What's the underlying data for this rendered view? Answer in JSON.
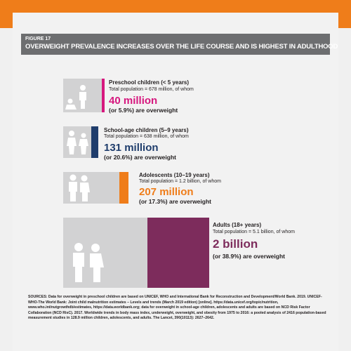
{
  "figure": {
    "label": "FIGURE 17",
    "title": "OVERWEIGHT PREVALENCE INCREASES OVER THE LIFE COURSE AND IS HIGHEST IN ADULTHOOD"
  },
  "groups": [
    {
      "heading": "Preschool children (< 5 years)",
      "population": "Total population = 678 million, of whom",
      "count": "40 million",
      "share": "(or 5.9%) are overweight"
    },
    {
      "heading": "School-age children (5–9 years)",
      "population": "Total population = 638 million, of whom",
      "count": "131 million",
      "share": "(or 20.6%) are overweight"
    },
    {
      "heading": "Adolescents (10–19 years)",
      "population": "Total population = 1.2 billion, of whom",
      "count": "207 million",
      "share": "(or 17.3%) are overweight"
    },
    {
      "heading": "Adults (18+ years)",
      "population": "Total population = 5.1 billion, of whom",
      "count": "2 billion",
      "share": "(or 38.9%) are overweight"
    }
  ],
  "sources": "SOURCES: Data for overweight in preschool children are based on UNICEF, WHO and International Bank for Reconstruction and Development/World Bank. 2019. UNICEF-WHO-The World Bank: Joint child malnutrition estimates – Levels and trends (March 2019 edition) [online]. https://data.unicef.org/topic/nutrition, www.who.int/nutgrowthdb/estimates, https://data.worldbank.org; data for overweight in school-age children, adolescents and adults are based on NCD Risk Factor Collaboration (NCD RisC). 2017. Worldwide trends in body mass index, underweight, overweight, and obesity from 1975 to 2016: a pooled analysis of 2416 population-based measurement studies in 128.9 million children, adolescents, and adults. The Lancet, 390(10113): 2627–2642."
}
